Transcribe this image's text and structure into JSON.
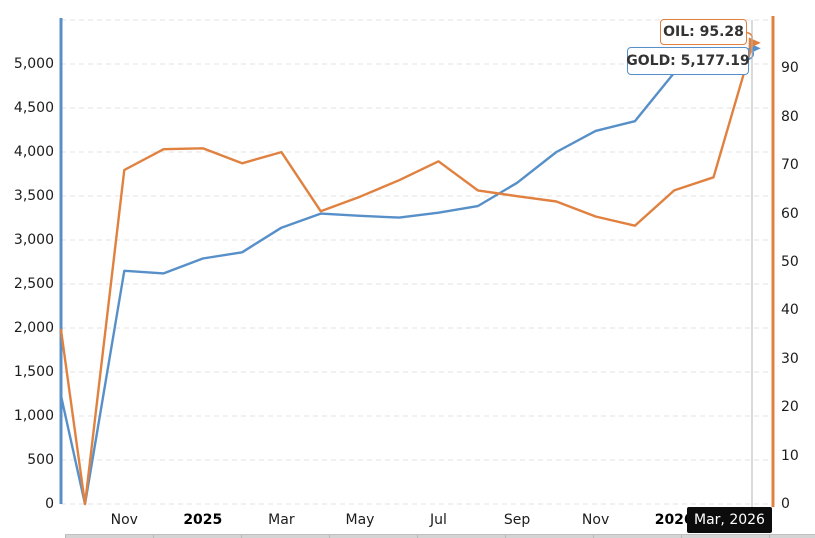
{
  "tooltips": {
    "oil": "OIL: 95.28",
    "gold": "GOLD: 5,177.19",
    "date": "Mar, 2026"
  },
  "colors": {
    "gold_series": "#5790c9",
    "oil_series": "#e08140",
    "grid": "#e3e3e3",
    "crosshair": "#b5b5b5",
    "axis_text": "#1c1c1c",
    "date_tooltip_bg": "#0c0c0c"
  },
  "chart_data": {
    "type": "line",
    "title": "",
    "xlabel": "",
    "ylabel_left": "",
    "ylabel_right": "",
    "grid": "horizontal-dashed",
    "legend_position": "none",
    "categories": [
      "Sep 2024",
      "Oct 2024",
      "Nov 2024",
      "Dec 2024",
      "Jan 2025",
      "Feb 2025",
      "Mar 2025",
      "Apr 2025",
      "May 2025",
      "Jun 2025",
      "Jul 2025",
      "Aug 2025",
      "Sep 2025",
      "Oct 2025",
      "Nov 2025",
      "Dec 2025",
      "Jan 2026",
      "Feb 2026",
      "Mar 2026"
    ],
    "series": [
      {
        "name": "GOLD",
        "axis": "left",
        "color": "#5790c9",
        "values": [
          1230,
          0,
          2650,
          2620,
          2790,
          2860,
          3140,
          3300,
          3275,
          3255,
          3310,
          3385,
          3650,
          4000,
          4240,
          4350,
          4900,
          5080,
          5177.19
        ],
        "last_value_label": "5,177.19"
      },
      {
        "name": "OIL",
        "axis": "right",
        "color": "#e08140",
        "values": [
          36,
          0,
          69,
          73.3,
          73.5,
          70.4,
          72.7,
          60.5,
          63.5,
          66.9,
          70.8,
          64.8,
          63.6,
          62.5,
          59.4,
          57.5,
          64.8,
          67.5,
          95.28
        ],
        "last_value_label": "95.28"
      }
    ],
    "left_axis": {
      "min": 0,
      "max": 5500,
      "tick_step": 500,
      "tick_labels": [
        "0",
        "500",
        "1,000",
        "1,500",
        "2,000",
        "2,500",
        "3,000",
        "3,500",
        "4,000",
        "4,500",
        "5,000"
      ]
    },
    "right_axis": {
      "min": 0,
      "max": 90,
      "tick_step": 10,
      "tick_labels": [
        "0",
        "10",
        "20",
        "30",
        "40",
        "50",
        "60",
        "70",
        "80",
        "90"
      ]
    },
    "x_ticks": [
      {
        "label": "Nov",
        "index": 2,
        "bold": false
      },
      {
        "label": "2025",
        "index": 4,
        "bold": true
      },
      {
        "label": "Mar",
        "index": 6,
        "bold": false
      },
      {
        "label": "May",
        "index": 8,
        "bold": false
      },
      {
        "label": "Jul",
        "index": 10,
        "bold": false
      },
      {
        "label": "Sep",
        "index": 12,
        "bold": false
      },
      {
        "label": "Nov",
        "index": 14,
        "bold": false
      },
      {
        "label": "2026",
        "index": 16,
        "bold": true
      }
    ],
    "crosshair_at": "Mar 2026"
  }
}
